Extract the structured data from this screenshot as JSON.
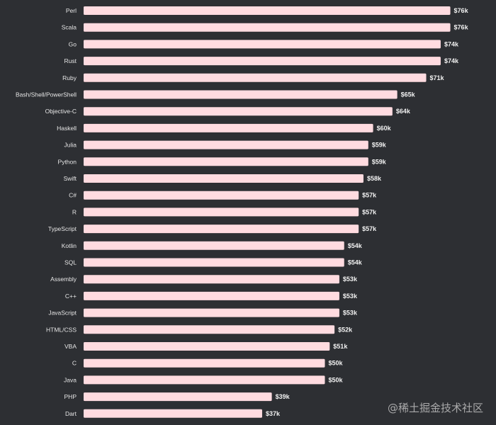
{
  "chart_data": {
    "type": "bar",
    "orientation": "horizontal",
    "title": "",
    "xlabel": "",
    "ylabel": "",
    "bar_color": "#ffdbe0",
    "background_color": "#2d2f33",
    "grid": false,
    "categories": [
      "Perl",
      "Scala",
      "Go",
      "Rust",
      "Ruby",
      "Bash/Shell/PowerShell",
      "Objective-C",
      "Haskell",
      "Julia",
      "Python",
      "Swift",
      "C#",
      "R",
      "TypeScript",
      "Kotlin",
      "SQL",
      "Assembly",
      "C++",
      "JavaScript",
      "HTML/CSS",
      "VBA",
      "C",
      "Java",
      "PHP",
      "Dart"
    ],
    "values": [
      76,
      76,
      74,
      74,
      71,
      65,
      64,
      60,
      59,
      59,
      58,
      57,
      57,
      57,
      54,
      54,
      53,
      53,
      53,
      52,
      51,
      50,
      50,
      39,
      37
    ],
    "value_labels": [
      "$76k",
      "$76k",
      "$74k",
      "$74k",
      "$71k",
      "$65k",
      "$64k",
      "$60k",
      "$59k",
      "$59k",
      "$58k",
      "$57k",
      "$57k",
      "$57k",
      "$54k",
      "$54k",
      "$53k",
      "$53k",
      "$53k",
      "$52k",
      "$51k",
      "$50k",
      "$50k",
      "$39k",
      "$37k"
    ]
  },
  "watermark": {
    "text": "@稀土掘金技术社区"
  }
}
